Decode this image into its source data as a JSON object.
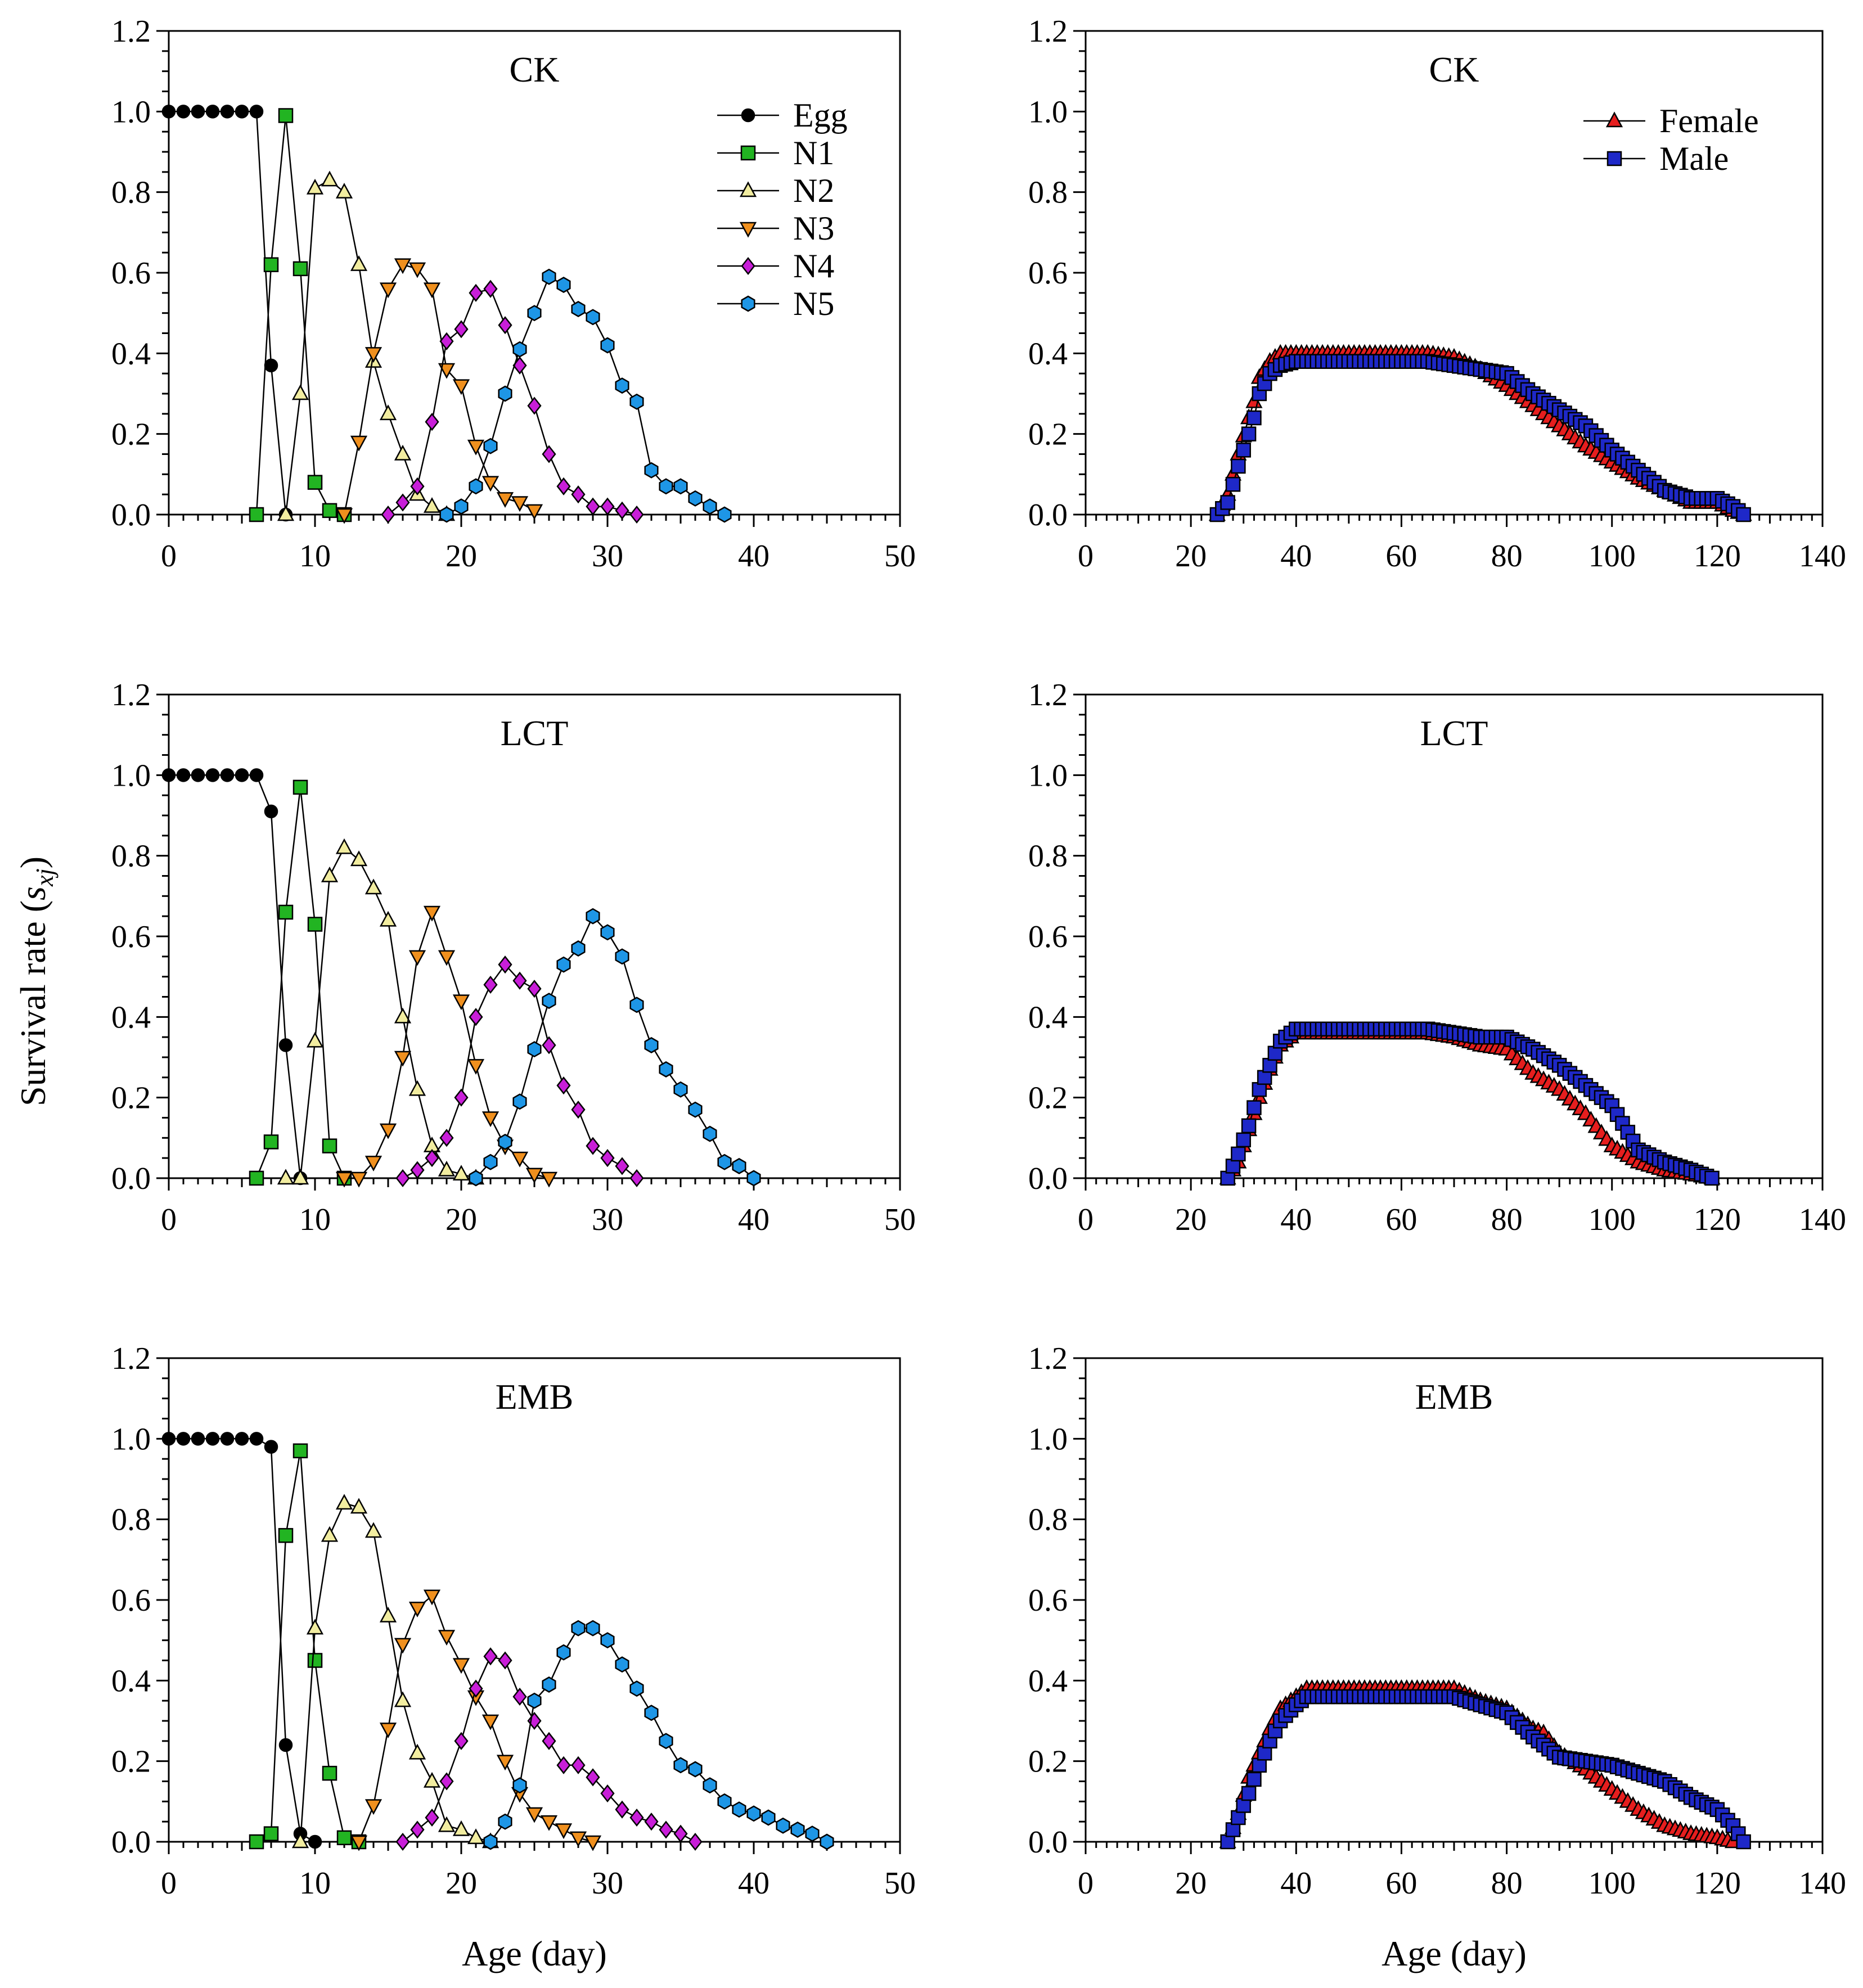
{
  "figure": {
    "ylabel_main": "Survival rate (",
    "ylabel_var": "s",
    "ylabel_sub": "xj",
    "ylabel_close": ")",
    "xlabel_left": "Age (day)",
    "xlabel_right": "Age (day)"
  },
  "colors": {
    "Egg": "#000000",
    "N1": "#22b422",
    "N2": "#f2eda0",
    "N3": "#f0901e",
    "N4": "#c81ed8",
    "N5": "#1e96e6",
    "Female": "#e61e1e",
    "Male": "#1e28c8"
  },
  "chart_data": [
    {
      "type": "line",
      "title": "CK",
      "xlabel": "",
      "ylabel": "",
      "xlim": [
        0,
        50
      ],
      "ylim": [
        0,
        1.2
      ],
      "xticks": [
        0,
        10,
        20,
        30,
        40,
        50
      ],
      "yticks": [
        0.0,
        0.2,
        0.4,
        0.6,
        0.8,
        1.0,
        1.2
      ],
      "legend": "top-right",
      "series": [
        {
          "name": "Egg",
          "marker": "circle",
          "x": [
            0,
            1,
            2,
            3,
            4,
            5,
            6,
            7,
            8
          ],
          "y": [
            1,
            1,
            1,
            1,
            1,
            1,
            1,
            0.37,
            0
          ]
        },
        {
          "name": "N1",
          "marker": "square",
          "x": [
            6,
            7,
            8,
            9,
            10,
            11,
            12
          ],
          "y": [
            0,
            0.62,
            0.99,
            0.61,
            0.08,
            0.01,
            0
          ]
        },
        {
          "name": "N2",
          "marker": "triangle-up",
          "x": [
            8,
            9,
            10,
            11,
            12,
            13,
            14,
            15,
            16,
            17,
            18,
            19
          ],
          "y": [
            0,
            0.3,
            0.81,
            0.83,
            0.8,
            0.62,
            0.38,
            0.25,
            0.15,
            0.05,
            0.02,
            0
          ]
        },
        {
          "name": "N3",
          "marker": "triangle-down",
          "x": [
            12,
            13,
            14,
            15,
            16,
            17,
            18,
            19,
            20,
            21,
            22,
            23,
            24,
            25
          ],
          "y": [
            0,
            0.18,
            0.4,
            0.56,
            0.62,
            0.61,
            0.56,
            0.36,
            0.32,
            0.17,
            0.08,
            0.04,
            0.03,
            0.01
          ]
        },
        {
          "name": "N4",
          "marker": "diamond",
          "x": [
            15,
            16,
            17,
            18,
            19,
            20,
            21,
            22,
            23,
            24,
            25,
            26,
            27,
            28,
            29,
            30,
            31,
            32
          ],
          "y": [
            0,
            0.03,
            0.07,
            0.23,
            0.43,
            0.46,
            0.55,
            0.56,
            0.47,
            0.37,
            0.27,
            0.15,
            0.07,
            0.05,
            0.02,
            0.02,
            0.01,
            0
          ]
        },
        {
          "name": "N5",
          "marker": "hexagon",
          "x": [
            19,
            20,
            21,
            22,
            23,
            24,
            25,
            26,
            27,
            28,
            29,
            30,
            31,
            32,
            33,
            34,
            35,
            36,
            37,
            38
          ],
          "y": [
            0,
            0.02,
            0.07,
            0.17,
            0.3,
            0.41,
            0.5,
            0.59,
            0.57,
            0.51,
            0.49,
            0.42,
            0.32,
            0.28,
            0.11,
            0.07,
            0.07,
            0.04,
            0.02,
            0
          ]
        }
      ]
    },
    {
      "type": "line",
      "title": "CK",
      "xlabel": "",
      "ylabel": "",
      "xlim": [
        0,
        140
      ],
      "ylim": [
        0,
        1.2
      ],
      "xticks": [
        0,
        20,
        40,
        60,
        80,
        100,
        120,
        140
      ],
      "yticks": [
        0.0,
        0.2,
        0.4,
        0.6,
        0.8,
        1.0,
        1.2
      ],
      "legend": "top-right",
      "series": [
        {
          "name": "Female",
          "marker": "triangle-up",
          "x": [
            25,
            27,
            29,
            31,
            32,
            33,
            35,
            37,
            40,
            65,
            70,
            75,
            80,
            85,
            90,
            95,
            100,
            105,
            110,
            115,
            120,
            123,
            125
          ],
          "y": [
            0,
            0.05,
            0.15,
            0.24,
            0.28,
            0.34,
            0.38,
            0.4,
            0.4,
            0.4,
            0.39,
            0.36,
            0.32,
            0.27,
            0.22,
            0.17,
            0.13,
            0.09,
            0.06,
            0.03,
            0.03,
            0.01,
            0
          ]
        },
        {
          "name": "Male",
          "marker": "square",
          "x": [
            25,
            27,
            29,
            31,
            32,
            33,
            35,
            37,
            40,
            65,
            70,
            75,
            80,
            85,
            90,
            95,
            100,
            105,
            110,
            115,
            120,
            123,
            125
          ],
          "y": [
            0,
            0.03,
            0.12,
            0.2,
            0.24,
            0.3,
            0.35,
            0.37,
            0.38,
            0.38,
            0.37,
            0.36,
            0.35,
            0.3,
            0.26,
            0.22,
            0.16,
            0.11,
            0.06,
            0.04,
            0.04,
            0.02,
            0
          ]
        }
      ]
    },
    {
      "type": "line",
      "title": "LCT",
      "xlabel": "",
      "ylabel": "",
      "xlim": [
        0,
        50
      ],
      "ylim": [
        0,
        1.2
      ],
      "xticks": [
        0,
        10,
        20,
        30,
        40,
        50
      ],
      "yticks": [
        0.0,
        0.2,
        0.4,
        0.6,
        0.8,
        1.0,
        1.2
      ],
      "series": [
        {
          "name": "Egg",
          "marker": "circle",
          "x": [
            0,
            1,
            2,
            3,
            4,
            5,
            6,
            7,
            8,
            9
          ],
          "y": [
            1,
            1,
            1,
            1,
            1,
            1,
            1,
            0.91,
            0.33,
            0
          ]
        },
        {
          "name": "N1",
          "marker": "square",
          "x": [
            6,
            7,
            8,
            9,
            10,
            11,
            12
          ],
          "y": [
            0,
            0.09,
            0.66,
            0.97,
            0.63,
            0.08,
            0
          ]
        },
        {
          "name": "N2",
          "marker": "triangle-up",
          "x": [
            8,
            9,
            10,
            11,
            12,
            13,
            14,
            15,
            16,
            17,
            18,
            19,
            20,
            21
          ],
          "y": [
            0,
            0,
            0.34,
            0.75,
            0.82,
            0.79,
            0.72,
            0.64,
            0.4,
            0.22,
            0.08,
            0.02,
            0.01,
            0
          ]
        },
        {
          "name": "N3",
          "marker": "triangle-down",
          "x": [
            12,
            13,
            14,
            15,
            16,
            17,
            18,
            19,
            20,
            21,
            22,
            23,
            24,
            25,
            26
          ],
          "y": [
            0,
            0,
            0.04,
            0.12,
            0.3,
            0.55,
            0.66,
            0.55,
            0.44,
            0.28,
            0.15,
            0.08,
            0.05,
            0.01,
            0
          ]
        },
        {
          "name": "N4",
          "marker": "diamond",
          "x": [
            16,
            17,
            18,
            19,
            20,
            21,
            22,
            23,
            24,
            25,
            26,
            27,
            28,
            29,
            30,
            31,
            32
          ],
          "y": [
            0,
            0.02,
            0.05,
            0.1,
            0.2,
            0.4,
            0.48,
            0.53,
            0.49,
            0.47,
            0.33,
            0.23,
            0.17,
            0.08,
            0.05,
            0.03,
            0
          ]
        },
        {
          "name": "N5",
          "marker": "hexagon",
          "x": [
            21,
            22,
            23,
            24,
            25,
            26,
            27,
            28,
            29,
            30,
            31,
            32,
            33,
            34,
            35,
            36,
            37,
            38,
            39,
            40
          ],
          "y": [
            0,
            0.04,
            0.09,
            0.19,
            0.32,
            0.44,
            0.53,
            0.57,
            0.65,
            0.61,
            0.55,
            0.43,
            0.33,
            0.27,
            0.22,
            0.17,
            0.11,
            0.04,
            0.03,
            0
          ]
        }
      ]
    },
    {
      "type": "line",
      "title": "LCT",
      "xlabel": "",
      "ylabel": "",
      "xlim": [
        0,
        140
      ],
      "ylim": [
        0,
        1.2
      ],
      "xticks": [
        0,
        20,
        40,
        60,
        80,
        100,
        120,
        140
      ],
      "yticks": [
        0.0,
        0.2,
        0.4,
        0.6,
        0.8,
        1.0,
        1.2
      ],
      "series": [
        {
          "name": "Female",
          "marker": "triangle-up",
          "x": [
            27,
            29,
            31,
            33,
            35,
            37,
            40,
            65,
            70,
            75,
            80,
            85,
            90,
            95,
            100,
            105,
            110,
            115,
            119
          ],
          "y": [
            0,
            0.04,
            0.12,
            0.2,
            0.27,
            0.33,
            0.36,
            0.36,
            0.35,
            0.33,
            0.32,
            0.26,
            0.22,
            0.16,
            0.08,
            0.04,
            0.02,
            0.01,
            0
          ]
        },
        {
          "name": "Male",
          "marker": "square",
          "x": [
            27,
            29,
            31,
            33,
            35,
            37,
            40,
            65,
            70,
            75,
            80,
            85,
            90,
            95,
            100,
            105,
            110,
            115,
            119
          ],
          "y": [
            0,
            0.06,
            0.13,
            0.22,
            0.28,
            0.34,
            0.37,
            0.37,
            0.36,
            0.35,
            0.35,
            0.32,
            0.28,
            0.23,
            0.18,
            0.07,
            0.04,
            0.02,
            0
          ]
        }
      ]
    },
    {
      "type": "line",
      "title": "EMB",
      "xlabel": "",
      "ylabel": "",
      "xlim": [
        0,
        50
      ],
      "ylim": [
        0,
        1.2
      ],
      "xticks": [
        0,
        10,
        20,
        30,
        40,
        50
      ],
      "yticks": [
        0.0,
        0.2,
        0.4,
        0.6,
        0.8,
        1.0,
        1.2
      ],
      "series": [
        {
          "name": "Egg",
          "marker": "circle",
          "x": [
            0,
            1,
            2,
            3,
            4,
            5,
            6,
            7,
            8,
            9,
            10
          ],
          "y": [
            1,
            1,
            1,
            1,
            1,
            1,
            1,
            0.98,
            0.24,
            0.02,
            0
          ]
        },
        {
          "name": "N1",
          "marker": "square",
          "x": [
            6,
            7,
            8,
            9,
            10,
            11,
            12,
            13
          ],
          "y": [
            0,
            0.02,
            0.76,
            0.97,
            0.45,
            0.17,
            0.01,
            0
          ]
        },
        {
          "name": "N2",
          "marker": "triangle-up",
          "x": [
            9,
            10,
            11,
            12,
            13,
            14,
            15,
            16,
            17,
            18,
            19,
            20,
            21,
            22
          ],
          "y": [
            0,
            0.53,
            0.76,
            0.84,
            0.83,
            0.77,
            0.56,
            0.35,
            0.22,
            0.15,
            0.04,
            0.03,
            0.01,
            0
          ]
        },
        {
          "name": "N3",
          "marker": "triangle-down",
          "x": [
            13,
            14,
            15,
            16,
            17,
            18,
            19,
            20,
            21,
            22,
            23,
            24,
            25,
            26,
            27,
            28,
            29
          ],
          "y": [
            0,
            0.09,
            0.28,
            0.49,
            0.58,
            0.61,
            0.51,
            0.44,
            0.36,
            0.3,
            0.2,
            0.12,
            0.07,
            0.05,
            0.03,
            0.01,
            0
          ]
        },
        {
          "name": "N4",
          "marker": "diamond",
          "x": [
            16,
            17,
            18,
            19,
            20,
            21,
            22,
            23,
            24,
            25,
            26,
            27,
            28,
            29,
            30,
            31,
            32,
            33,
            34,
            35,
            36
          ],
          "y": [
            0,
            0.03,
            0.06,
            0.15,
            0.25,
            0.38,
            0.46,
            0.45,
            0.36,
            0.3,
            0.25,
            0.19,
            0.19,
            0.16,
            0.12,
            0.08,
            0.06,
            0.05,
            0.03,
            0.02,
            0
          ]
        },
        {
          "name": "N5",
          "marker": "hexagon",
          "x": [
            22,
            23,
            24,
            25,
            26,
            27,
            28,
            29,
            30,
            31,
            32,
            33,
            34,
            35,
            36,
            37,
            38,
            39,
            40,
            41,
            42,
            43,
            44,
            45
          ],
          "y": [
            0,
            0.05,
            0.14,
            0.35,
            0.39,
            0.47,
            0.53,
            0.53,
            0.5,
            0.44,
            0.38,
            0.32,
            0.25,
            0.19,
            0.18,
            0.14,
            0.1,
            0.08,
            0.07,
            0.06,
            0.04,
            0.03,
            0.02,
            0
          ]
        }
      ]
    },
    {
      "type": "line",
      "title": "EMB",
      "xlabel": "",
      "ylabel": "",
      "xlim": [
        0,
        140
      ],
      "ylim": [
        0,
        1.2
      ],
      "xticks": [
        0,
        20,
        40,
        60,
        80,
        100,
        120,
        140
      ],
      "yticks": [
        0.0,
        0.2,
        0.4,
        0.6,
        0.8,
        1.0,
        1.2
      ],
      "series": [
        {
          "name": "Female",
          "marker": "triangle-up",
          "x": [
            27,
            29,
            31,
            33,
            35,
            37,
            40,
            42,
            70,
            75,
            80,
            85,
            87,
            90,
            95,
            100,
            105,
            110,
            115,
            120,
            123
          ],
          "y": [
            0,
            0.07,
            0.16,
            0.22,
            0.28,
            0.33,
            0.36,
            0.38,
            0.38,
            0.35,
            0.33,
            0.28,
            0.27,
            0.22,
            0.18,
            0.13,
            0.08,
            0.04,
            0.02,
            0.01,
            0
          ]
        },
        {
          "name": "Male",
          "marker": "square",
          "x": [
            27,
            29,
            31,
            33,
            35,
            37,
            40,
            42,
            70,
            75,
            80,
            85,
            87,
            90,
            95,
            100,
            105,
            110,
            115,
            120,
            123,
            125
          ],
          "y": [
            0,
            0.06,
            0.12,
            0.19,
            0.25,
            0.3,
            0.34,
            0.36,
            0.36,
            0.34,
            0.32,
            0.26,
            0.24,
            0.21,
            0.2,
            0.19,
            0.17,
            0.15,
            0.11,
            0.08,
            0.04,
            0
          ]
        }
      ]
    }
  ]
}
